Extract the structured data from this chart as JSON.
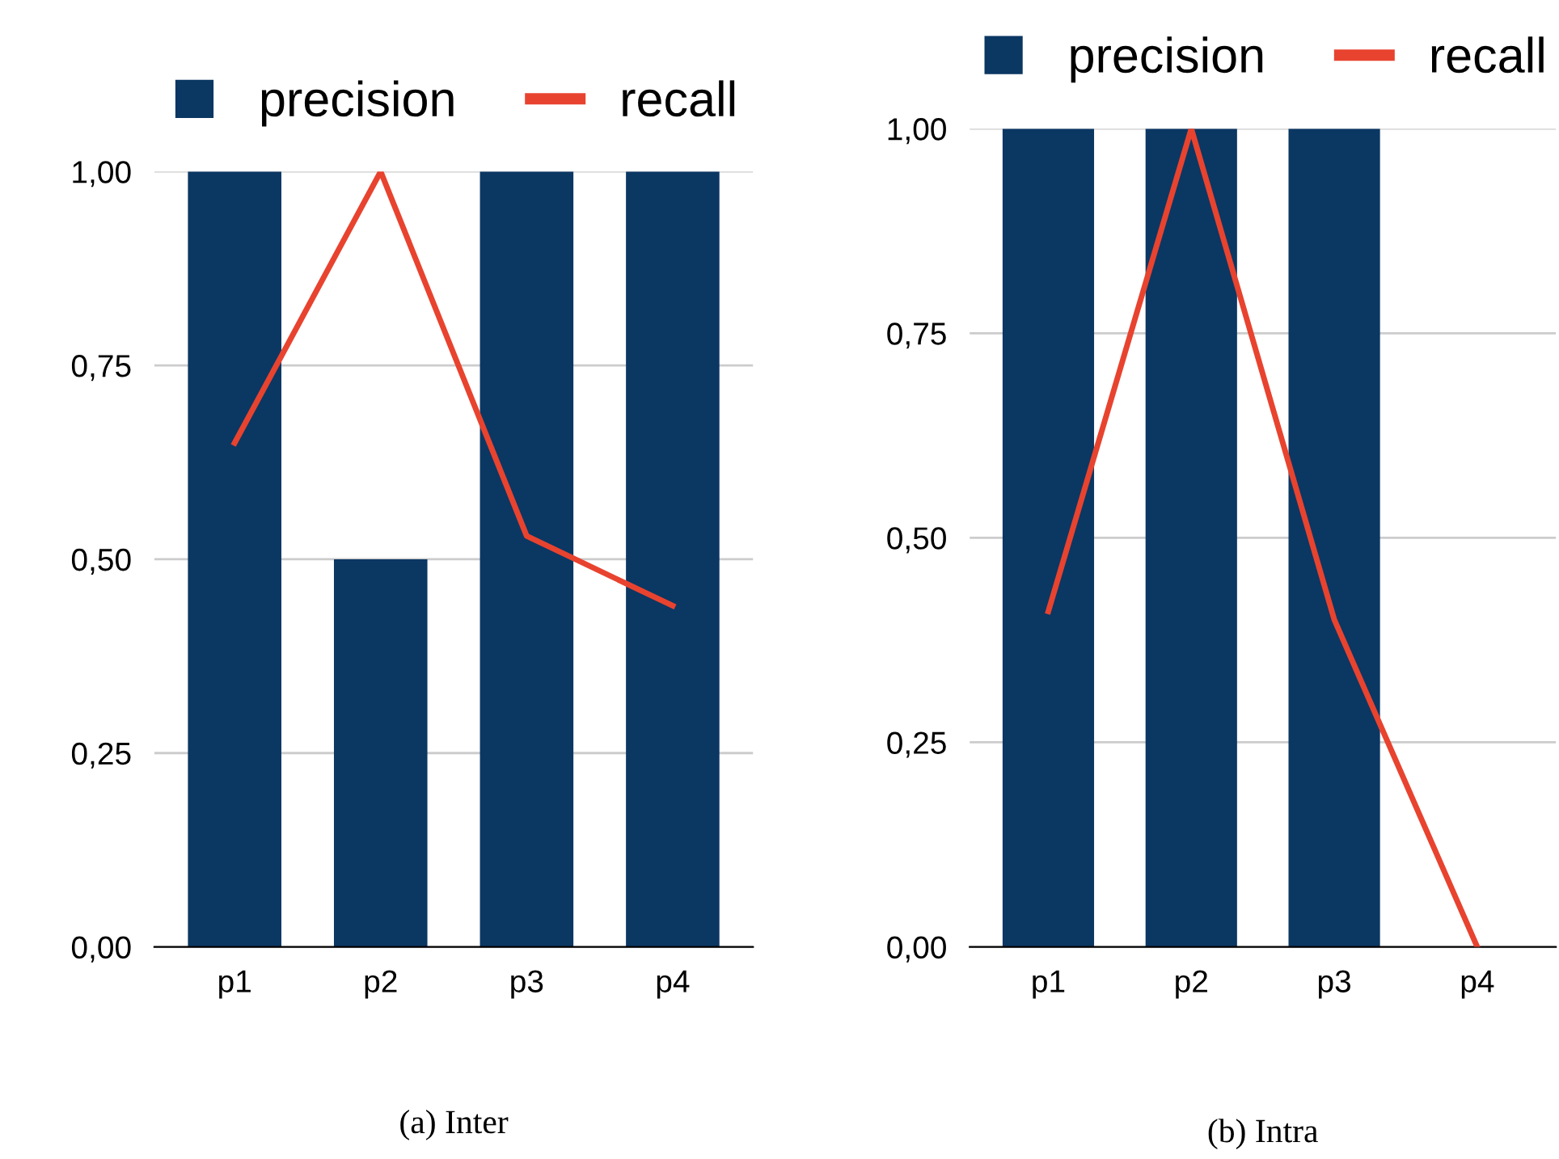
{
  "chart_data": [
    {
      "type": "bar",
      "categories": [
        "p1",
        "p2",
        "p3",
        "p4"
      ],
      "series": [
        {
          "name": "precision",
          "color": "#0b3763",
          "values": [
            1.0,
            0.5,
            1.0,
            1.0
          ]
        },
        {
          "name": "recall",
          "type": "line",
          "color": "#e8432f",
          "values": [
            0.65,
            1.0,
            0.53,
            0.44
          ]
        }
      ],
      "ylim": [
        0,
        1
      ],
      "yticks": [
        {
          "value": 0,
          "label": "0,00"
        },
        {
          "value": 0.25,
          "label": "0,25"
        },
        {
          "value": 0.5,
          "label": "0,50"
        },
        {
          "value": 0.75,
          "label": "0,75"
        },
        {
          "value": 1,
          "label": "1,00"
        }
      ],
      "grid": "y",
      "legend": "top",
      "annotations": [
        "(a) Inter"
      ]
    },
    {
      "type": "bar",
      "categories": [
        "p1",
        "p2",
        "p3",
        "p4"
      ],
      "series": [
        {
          "name": "precision",
          "color": "#0b3763",
          "values": [
            1.0,
            1.0,
            1.0,
            0
          ]
        },
        {
          "name": "recall",
          "type": "line",
          "color": "#e8432f",
          "values": [
            0.41,
            1.0,
            0.4,
            0
          ]
        }
      ],
      "ylim": [
        0,
        1
      ],
      "yticks": [
        {
          "value": 0,
          "label": "0,00"
        },
        {
          "value": 0.25,
          "label": "0,25"
        },
        {
          "value": 0.5,
          "label": "0,50"
        },
        {
          "value": 0.75,
          "label": "0,75"
        },
        {
          "value": 1,
          "label": "1,00"
        }
      ],
      "grid": "y",
      "legend": "top",
      "annotations": [
        "(b) Intra"
      ]
    }
  ]
}
